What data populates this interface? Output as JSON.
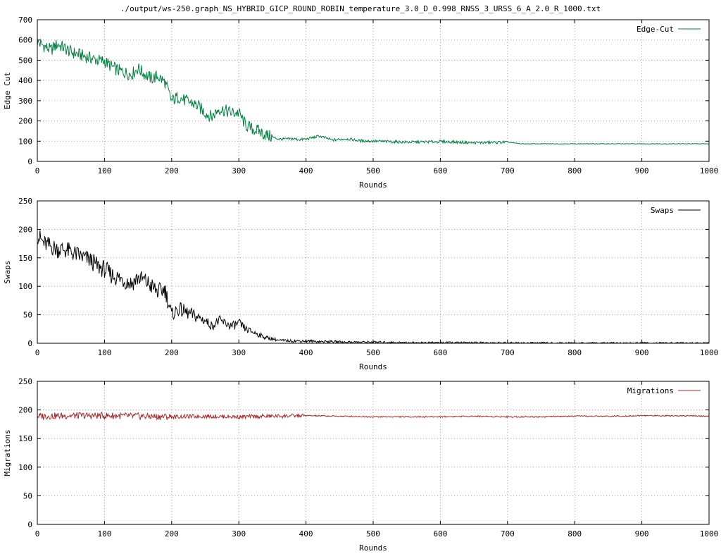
{
  "title": "./output/ws-250.graph_NS_HYBRID_GICP_ROUND_ROBIN_temperature_3.0_D_0.998_RNSS_3_URSS_6_A_2.0_R_1000.txt",
  "chart_data": [
    {
      "type": "line",
      "xlabel": "Rounds",
      "ylabel": "Edge Cut",
      "xlim": [
        0,
        1000
      ],
      "ylim": [
        0,
        700
      ],
      "xticks": [
        0,
        100,
        200,
        300,
        400,
        500,
        600,
        700,
        800,
        900,
        1000
      ],
      "yticks": [
        0,
        100,
        200,
        300,
        400,
        500,
        600,
        700
      ],
      "grid": true,
      "legend": "top-right",
      "series": [
        {
          "name": "Edge-Cut",
          "color": "#00803f",
          "x": [
            0,
            10,
            20,
            30,
            40,
            50,
            60,
            70,
            80,
            90,
            100,
            110,
            120,
            130,
            140,
            150,
            160,
            170,
            180,
            190,
            200,
            210,
            220,
            230,
            240,
            250,
            260,
            270,
            280,
            290,
            300,
            310,
            320,
            330,
            340,
            350,
            360,
            370,
            380,
            390,
            400,
            420,
            440,
            460,
            480,
            500,
            550,
            600,
            650,
            700,
            720,
            800,
            900,
            1000
          ],
          "y": [
            590,
            570,
            550,
            580,
            560,
            540,
            530,
            520,
            510,
            500,
            495,
            470,
            450,
            440,
            430,
            460,
            430,
            410,
            420,
            390,
            300,
            320,
            300,
            290,
            270,
            240,
            220,
            260,
            250,
            240,
            240,
            180,
            160,
            150,
            130,
            120,
            110,
            110,
            112,
            108,
            110,
            125,
            105,
            112,
            102,
            100,
            95,
            98,
            92,
            95,
            87,
            87,
            87,
            87
          ]
        }
      ]
    },
    {
      "type": "line",
      "xlabel": "Rounds",
      "ylabel": "Swaps",
      "xlim": [
        0,
        1000
      ],
      "ylim": [
        0,
        250
      ],
      "xticks": [
        0,
        100,
        200,
        300,
        400,
        500,
        600,
        700,
        800,
        900,
        1000
      ],
      "yticks": [
        0,
        50,
        100,
        150,
        200,
        250
      ],
      "grid": true,
      "legend": "top-right",
      "series": [
        {
          "name": "Swaps",
          "color": "#000000",
          "x": [
            0,
            10,
            20,
            30,
            40,
            50,
            60,
            70,
            80,
            90,
            100,
            110,
            120,
            130,
            140,
            150,
            160,
            170,
            180,
            190,
            200,
            210,
            220,
            230,
            240,
            250,
            260,
            270,
            280,
            290,
            300,
            310,
            320,
            330,
            340,
            350,
            360,
            380,
            400,
            420,
            440,
            460,
            480,
            500,
            550,
            600,
            650,
            700,
            750,
            800,
            900,
            1000
          ],
          "y": [
            190,
            175,
            170,
            165,
            165,
            160,
            155,
            150,
            145,
            135,
            130,
            120,
            115,
            110,
            105,
            115,
            110,
            100,
            90,
            95,
            50,
            60,
            55,
            50,
            45,
            40,
            30,
            40,
            35,
            30,
            35,
            25,
            20,
            15,
            10,
            8,
            5,
            4,
            4,
            3,
            3,
            2,
            2,
            2,
            1,
            1,
            1,
            0.5,
            0.3,
            0.2,
            0.2,
            0.1
          ]
        }
      ]
    },
    {
      "type": "line",
      "xlabel": "Rounds",
      "ylabel": "Migrations",
      "xlim": [
        0,
        1000
      ],
      "ylim": [
        0,
        250
      ],
      "xticks": [
        0,
        100,
        200,
        300,
        400,
        500,
        600,
        700,
        800,
        900,
        1000
      ],
      "yticks": [
        0,
        50,
        100,
        150,
        200,
        250
      ],
      "grid": true,
      "legend": "top-right",
      "series": [
        {
          "name": "Migrations",
          "color": "#a52a2a",
          "x": [
            0,
            50,
            100,
            150,
            200,
            250,
            300,
            350,
            400,
            450,
            500,
            550,
            600,
            650,
            700,
            750,
            800,
            850,
            900,
            950,
            1000
          ],
          "y": [
            189,
            190,
            190,
            189,
            188,
            189,
            188,
            189,
            190,
            189,
            188,
            188,
            188,
            189,
            188,
            188,
            189,
            189,
            190,
            190,
            189
          ]
        }
      ]
    }
  ]
}
